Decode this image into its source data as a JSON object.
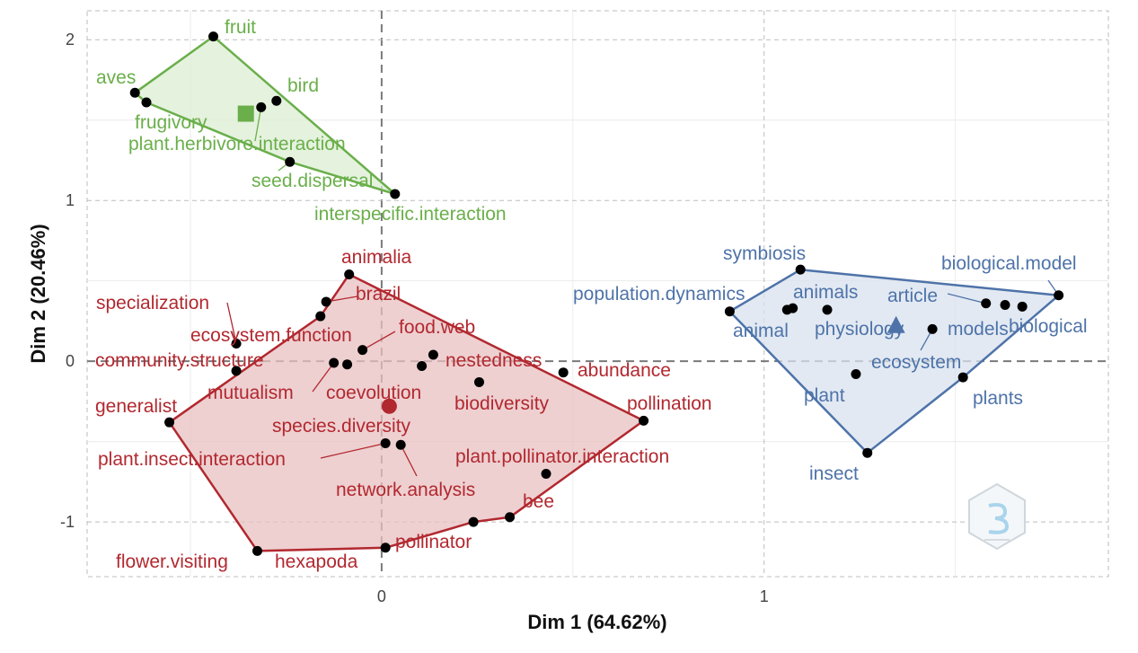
{
  "chart_data": {
    "type": "scatter",
    "xlabel": "Dim 1 (64.62%)",
    "ylabel": "Dim 2 (20.46%)",
    "xlim": [
      -0.77,
      1.9
    ],
    "ylim": [
      -1.34,
      2.18
    ],
    "x_ticks": [
      {
        "value": 0,
        "label": "0"
      },
      {
        "value": 1,
        "label": "1"
      }
    ],
    "y_ticks": [
      {
        "value": 2,
        "label": "2"
      },
      {
        "value": 1,
        "label": "1"
      },
      {
        "value": 0,
        "label": "0"
      },
      {
        "value": -1,
        "label": "-1"
      }
    ],
    "grid": true,
    "colors": {
      "cluster1": "#b2282f",
      "cluster2": "#6aaf4a",
      "cluster3": "#4e73a9"
    },
    "clusters": [
      {
        "id": "cluster1",
        "color": "#b2282f",
        "fill": "#e8c0c2",
        "centroid": {
          "x": 0.02,
          "y": -0.28,
          "shape": "circle"
        },
        "hull": [
          "animalia",
          "pollination",
          "bee",
          "pollinator",
          "hexapoda",
          "flower.visiting",
          "generalist",
          "ecosystem.function"
        ],
        "points": [
          {
            "label": "animalia",
            "x": -0.085,
            "y": 0.54
          },
          {
            "label": "brazil",
            "x": -0.145,
            "y": 0.37
          },
          {
            "label": "specialization",
            "x": -0.38,
            "y": 0.11
          },
          {
            "label": "ecosystem.function",
            "x": -0.16,
            "y": 0.28
          },
          {
            "label": "food.web",
            "x": -0.05,
            "y": 0.07
          },
          {
            "label": "community.structure",
            "x": -0.38,
            "y": -0.06
          },
          {
            "label": "nestedness",
            "x": 0.135,
            "y": 0.04
          },
          {
            "label": "abundance",
            "x": 0.475,
            "y": -0.07
          },
          {
            "label": "mutualism",
            "x": -0.125,
            "y": -0.01
          },
          {
            "label": "coevolution",
            "x": -0.09,
            "y": -0.02
          },
          {
            "label": "biodiversity",
            "x": 0.105,
            "y": -0.03
          },
          {
            "label": "generalist",
            "x": -0.555,
            "y": -0.38
          },
          {
            "label": "species.diversity",
            "x": 0.255,
            "y": -0.13
          },
          {
            "label": "pollination",
            "x": 0.685,
            "y": -0.37
          },
          {
            "label": "plant.insect.interaction",
            "x": 0.01,
            "y": -0.51
          },
          {
            "label": "network.analysis",
            "x": 0.05,
            "y": -0.52
          },
          {
            "label": "plant.pollinator.interaction",
            "x": 0.43,
            "y": -0.7
          },
          {
            "label": "bee",
            "x": 0.335,
            "y": -0.97
          },
          {
            "label": "pollinator",
            "x": 0.24,
            "y": -1.0
          },
          {
            "label": "flower.visiting",
            "x": -0.325,
            "y": -1.18
          },
          {
            "label": "hexapoda",
            "x": 0.01,
            "y": -1.16
          }
        ]
      },
      {
        "id": "cluster2",
        "color": "#6aaf4a",
        "fill": "#dcedd3",
        "centroid": {
          "x": -0.355,
          "y": 1.54,
          "shape": "square"
        },
        "hull": [
          "fruit",
          "interspecific.interaction",
          "seed.dispersal",
          "frugivory",
          "aves"
        ],
        "points": [
          {
            "label": "fruit",
            "x": -0.44,
            "y": 2.02
          },
          {
            "label": "aves",
            "x": -0.645,
            "y": 1.67
          },
          {
            "label": "frugivory",
            "x": -0.615,
            "y": 1.61
          },
          {
            "label": "bird",
            "x": -0.275,
            "y": 1.62
          },
          {
            "label": "plant.herbivore.interaction",
            "x": -0.315,
            "y": 1.58
          },
          {
            "label": "seed.dispersal",
            "x": -0.24,
            "y": 1.24
          },
          {
            "label": "interspecific.interaction",
            "x": 0.035,
            "y": 1.04
          }
        ]
      },
      {
        "id": "cluster3",
        "color": "#4e73a9",
        "fill": "#d8e1ee",
        "centroid": {
          "x": 1.345,
          "y": 0.22,
          "shape": "triangle"
        },
        "hull": [
          "symbiosis",
          "biological.model",
          "plants",
          "insect",
          "population.dynamics"
        ],
        "points": [
          {
            "label": "symbiosis",
            "x": 1.095,
            "y": 0.57
          },
          {
            "label": "biological.model",
            "x": 1.77,
            "y": 0.41
          },
          {
            "label": "population.dynamics",
            "x": 0.91,
            "y": 0.31
          },
          {
            "label": "animals",
            "x": 1.075,
            "y": 0.33
          },
          {
            "label": "animal",
            "x": 1.06,
            "y": 0.32
          },
          {
            "label": "physiology",
            "x": 1.165,
            "y": 0.32
          },
          {
            "label": "article",
            "x": 1.58,
            "y": 0.36
          },
          {
            "label": "models",
            "x": 1.63,
            "y": 0.35
          },
          {
            "label": "biological",
            "x": 1.675,
            "y": 0.34
          },
          {
            "label": "ecosystem",
            "x": 1.44,
            "y": 0.2
          },
          {
            "label": "plant",
            "x": 1.24,
            "y": -0.08
          },
          {
            "label": "plants",
            "x": 1.52,
            "y": -0.1
          },
          {
            "label": "insect",
            "x": 1.27,
            "y": -0.57
          }
        ]
      }
    ]
  }
}
